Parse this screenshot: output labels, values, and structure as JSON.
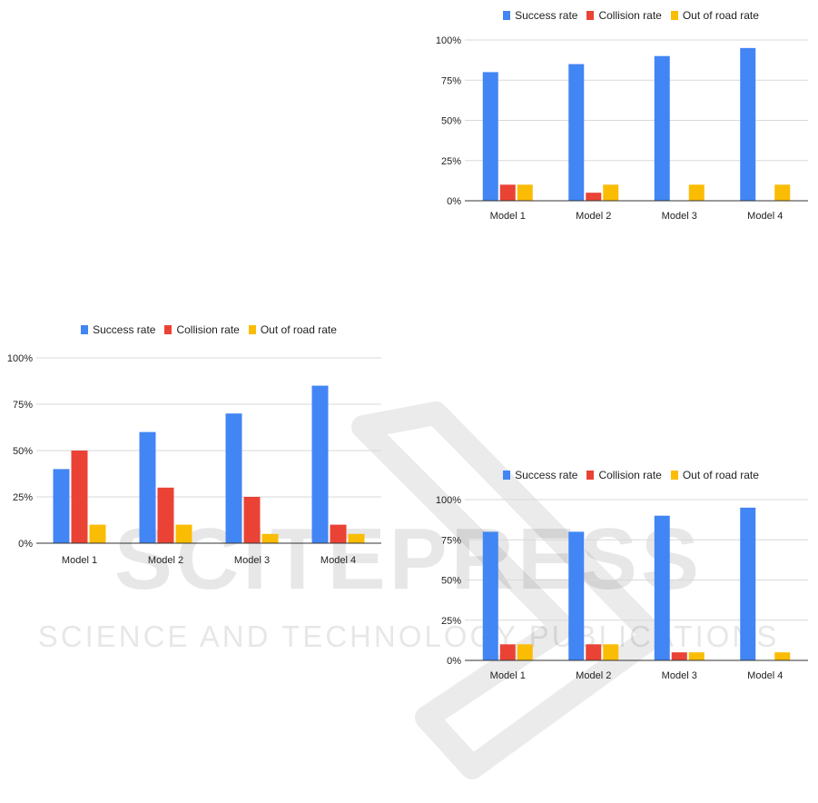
{
  "chart_data": [
    {
      "type": "bar",
      "categories": [
        "Model 1",
        "Model 2",
        "Model 3",
        "Model 4"
      ],
      "series": [
        {
          "name": "Success rate",
          "values": [
            80,
            85,
            90,
            95
          ]
        },
        {
          "name": "Collision rate",
          "values": [
            10,
            5,
            0,
            0
          ]
        },
        {
          "name": "Out of road rate",
          "values": [
            10,
            10,
            10,
            10
          ]
        }
      ],
      "yticks": [
        "0%",
        "25%",
        "50%",
        "75%",
        "100%"
      ],
      "ylim": [
        0,
        100
      ],
      "grid": true,
      "legend": "top-center"
    },
    {
      "type": "bar",
      "categories": [
        "Model 1",
        "Model 2",
        "Model 3",
        "Model 4"
      ],
      "series": [
        {
          "name": "Success rate",
          "values": [
            40,
            60,
            70,
            85
          ]
        },
        {
          "name": "Collision rate",
          "values": [
            50,
            30,
            25,
            10
          ]
        },
        {
          "name": "Out of road rate",
          "values": [
            10,
            10,
            5,
            5
          ]
        }
      ],
      "yticks": [
        "0%",
        "25%",
        "50%",
        "75%",
        "100%"
      ],
      "ylim": [
        0,
        100
      ],
      "grid": true,
      "legend": "top-center"
    },
    {
      "type": "bar",
      "categories": [
        "Model 1",
        "Model 2",
        "Model 3",
        "Model 4"
      ],
      "series": [
        {
          "name": "Success rate",
          "values": [
            80,
            80,
            90,
            95
          ]
        },
        {
          "name": "Collision rate",
          "values": [
            10,
            10,
            5,
            0
          ]
        },
        {
          "name": "Out of road rate",
          "values": [
            10,
            10,
            5,
            5
          ]
        }
      ],
      "yticks": [
        "0%",
        "25%",
        "50%",
        "75%",
        "100%"
      ],
      "ylim": [
        0,
        100
      ],
      "grid": true,
      "legend": "top-center"
    }
  ],
  "colors": [
    "#4285f4",
    "#ea4335",
    "#fbbc04"
  ],
  "watermark": {
    "brand": "SCITEPRESS",
    "tagline": "SCIENCE AND TECHNOLOGY PUBLICATIONS"
  }
}
